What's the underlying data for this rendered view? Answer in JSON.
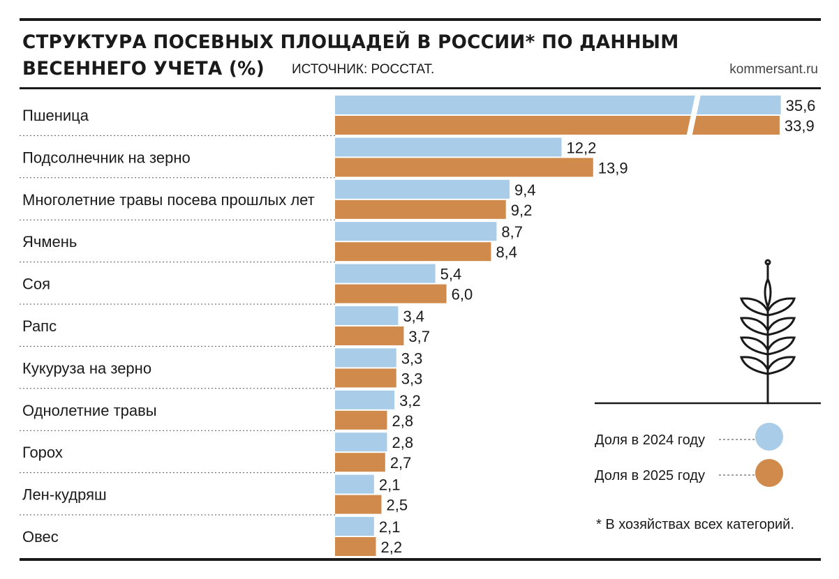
{
  "header": {
    "title_line1": "СТРУКТУРА ПОСЕВНЫХ ПЛОЩАДЕЙ В РОССИИ* ПО ДАННЫМ",
    "title_line2": "ВЕСЕННЕГО УЧЕТА (%)",
    "source": "ИСТОЧНИК: РОССТАТ.",
    "brand": "kommersant.ru"
  },
  "footnote": "* В хозяйствах всех категорий.",
  "colors": {
    "series_2024": "#a9cde9",
    "series_2025": "#d08a4c"
  },
  "icon": "wheat-ear-icon",
  "chart_data": {
    "type": "bar",
    "orientation": "horizontal",
    "title": "СТРУКТУРА ПОСЕВНЫХ ПЛОЩАДЕЙ В РОССИИ* ПО ДАННЫМ ВЕСЕННЕГО УЧЕТА (%)",
    "categories": [
      "Пшеница",
      "Подсолнечник на зерно",
      "Многолетние травы посева прошлых лет",
      "Ячмень",
      "Соя",
      "Рапс",
      "Кукуруза на зерно",
      "Однолетние травы",
      "Горох",
      "Лен-кудряш",
      "Овес"
    ],
    "series": [
      {
        "name": "Доля в 2024 году",
        "values": [
          35.6,
          12.2,
          9.4,
          8.7,
          5.4,
          3.4,
          3.3,
          3.2,
          2.8,
          2.1,
          2.1
        ],
        "labels": [
          "35,6",
          "12,2",
          "9,4",
          "8,7",
          "5,4",
          "3,4",
          "3,3",
          "3,2",
          "2,8",
          "2,1",
          "2,1"
        ]
      },
      {
        "name": "Доля в 2025 году",
        "values": [
          33.9,
          13.9,
          9.2,
          8.4,
          6.0,
          3.7,
          3.3,
          2.8,
          2.7,
          2.5,
          2.2
        ],
        "labels": [
          "33,9",
          "13,9",
          "9,2",
          "8,4",
          "6,0",
          "3,7",
          "3,3",
          "2,8",
          "2,7",
          "2,5",
          "2,2"
        ]
      }
    ],
    "axis_break": true,
    "legend_position": "bottom-right",
    "grid": false
  }
}
